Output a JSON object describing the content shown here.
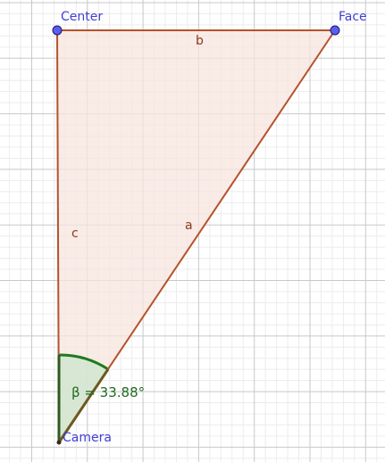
{
  "points": {
    "center": {
      "label": "Center"
    },
    "face": {
      "label": "Face"
    },
    "camera": {
      "label": "Camera"
    }
  },
  "segments": {
    "a": {
      "label": "a"
    },
    "b": {
      "label": "b"
    },
    "c": {
      "label": "c"
    }
  },
  "angle": {
    "label": "β = 33.88°"
  },
  "colors": {
    "triangle_fill": "#f7e4dd",
    "triangle_edge": "#b5522d",
    "point_fill": "#5b5cf0",
    "point_label": "#3f3fd6",
    "angle_stroke": "#1e7a1e",
    "angle_fill": "#cfe6cf",
    "grid_major": "#c8c8c8",
    "grid_minor": "#ececec"
  }
}
